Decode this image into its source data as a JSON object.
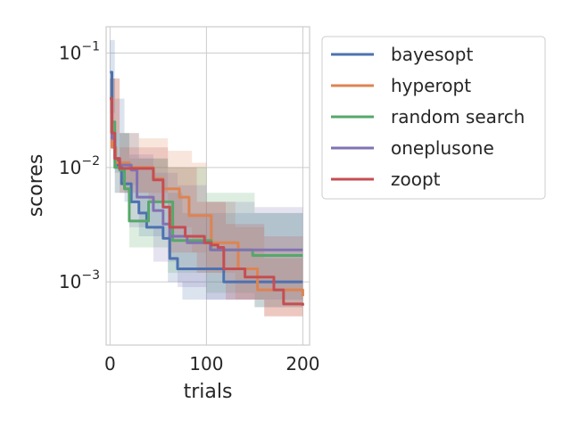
{
  "chart_data": {
    "type": "line",
    "title": "",
    "xlabel": "trials",
    "ylabel": "scores",
    "xlim": [
      -4,
      207
    ],
    "ylim": [
      0.00028,
      0.17
    ],
    "y_scale": "log",
    "xticks": [
      0,
      100,
      200
    ],
    "xtick_labels": [
      "0",
      "100",
      "200"
    ],
    "yticks": [
      0.1,
      0.01,
      0.001
    ],
    "ytick_labels": [
      {
        "base": "10",
        "exp": "−1"
      },
      {
        "base": "10",
        "exp": "−2"
      },
      {
        "base": "10",
        "exp": "−3"
      }
    ],
    "grid": true,
    "legend_position": "outside-right",
    "series": [
      {
        "name": "bayesopt",
        "color": "#4c72b0",
        "points": [
          [
            0,
            0.068
          ],
          [
            2,
            0.02
          ],
          [
            5,
            0.012
          ],
          [
            8,
            0.01
          ],
          [
            12,
            0.0072
          ],
          [
            18,
            0.0072
          ],
          [
            22,
            0.005
          ],
          [
            30,
            0.004
          ],
          [
            38,
            0.003
          ],
          [
            48,
            0.003
          ],
          [
            55,
            0.0024
          ],
          [
            62,
            0.0016
          ],
          [
            70,
            0.0013
          ],
          [
            105,
            0.0013
          ],
          [
            118,
            0.001
          ],
          [
            200,
            0.001
          ]
        ],
        "band": [
          [
            0,
            0.13,
            0.03
          ],
          [
            5,
            0.04,
            0.009
          ],
          [
            15,
            0.02,
            0.005
          ],
          [
            30,
            0.012,
            0.0025
          ],
          [
            60,
            0.006,
            0.001
          ],
          [
            75,
            0.004,
            0.0007
          ],
          [
            200,
            0.0035,
            0.0005
          ]
        ]
      },
      {
        "name": "hyperopt",
        "color": "#dd8452",
        "points": [
          [
            0,
            0.04
          ],
          [
            2,
            0.015
          ],
          [
            6,
            0.011
          ],
          [
            12,
            0.011
          ],
          [
            20,
            0.01
          ],
          [
            38,
            0.01
          ],
          [
            45,
            0.008
          ],
          [
            55,
            0.0065
          ],
          [
            65,
            0.0065
          ],
          [
            72,
            0.0055
          ],
          [
            82,
            0.0038
          ],
          [
            98,
            0.0038
          ],
          [
            105,
            0.0022
          ],
          [
            120,
            0.0022
          ],
          [
            133,
            0.0013
          ],
          [
            148,
            0.0013
          ],
          [
            153,
            0.00085
          ],
          [
            195,
            0.00085
          ],
          [
            200,
            0.00075
          ]
        ],
        "band": [
          [
            0,
            0.06,
            0.02
          ],
          [
            10,
            0.02,
            0.007
          ],
          [
            30,
            0.018,
            0.006
          ],
          [
            60,
            0.014,
            0.003
          ],
          [
            85,
            0.011,
            0.0018
          ],
          [
            100,
            0.005,
            0.0012
          ],
          [
            130,
            0.003,
            0.0007
          ],
          [
            160,
            0.0016,
            0.0005
          ],
          [
            200,
            0.0014,
            0.0004
          ]
        ]
      },
      {
        "name": "random search",
        "color": "#55a868",
        "points": [
          [
            0,
            0.04
          ],
          [
            2,
            0.025
          ],
          [
            5,
            0.01
          ],
          [
            10,
            0.0095
          ],
          [
            15,
            0.0065
          ],
          [
            20,
            0.0034
          ],
          [
            35,
            0.0034
          ],
          [
            40,
            0.005
          ],
          [
            62,
            0.005
          ],
          [
            65,
            0.0023
          ],
          [
            100,
            0.0023
          ],
          [
            105,
            0.0019
          ],
          [
            140,
            0.0019
          ],
          [
            148,
            0.0017
          ],
          [
            200,
            0.0017
          ]
        ],
        "band": [
          [
            0,
            0.06,
            0.02
          ],
          [
            5,
            0.02,
            0.006
          ],
          [
            20,
            0.012,
            0.002
          ],
          [
            60,
            0.01,
            0.0012
          ],
          [
            100,
            0.006,
            0.0008
          ],
          [
            150,
            0.004,
            0.0006
          ],
          [
            200,
            0.004,
            0.0006
          ]
        ]
      },
      {
        "name": "oneplusone",
        "color": "#8172b3",
        "points": [
          [
            0,
            0.04
          ],
          [
            2,
            0.018
          ],
          [
            5,
            0.012
          ],
          [
            10,
            0.0105
          ],
          [
            22,
            0.0095
          ],
          [
            28,
            0.0055
          ],
          [
            38,
            0.0055
          ],
          [
            45,
            0.0042
          ],
          [
            55,
            0.0032
          ],
          [
            62,
            0.0025
          ],
          [
            75,
            0.0025
          ],
          [
            80,
            0.0022
          ],
          [
            100,
            0.0022
          ],
          [
            104,
            0.0019
          ],
          [
            200,
            0.0019
          ]
        ],
        "band": [
          [
            0,
            0.06,
            0.02
          ],
          [
            5,
            0.02,
            0.006
          ],
          [
            20,
            0.013,
            0.003
          ],
          [
            45,
            0.009,
            0.0015
          ],
          [
            70,
            0.007,
            0.0009
          ],
          [
            100,
            0.005,
            0.0007
          ],
          [
            150,
            0.0045,
            0.0006
          ],
          [
            200,
            0.0045,
            0.0006
          ]
        ]
      },
      {
        "name": "zoopt",
        "color": "#c44e52",
        "points": [
          [
            0,
            0.04
          ],
          [
            2,
            0.02
          ],
          [
            5,
            0.012
          ],
          [
            10,
            0.0098
          ],
          [
            40,
            0.0098
          ],
          [
            45,
            0.0078
          ],
          [
            55,
            0.0045
          ],
          [
            62,
            0.003
          ],
          [
            78,
            0.0025
          ],
          [
            98,
            0.0022
          ],
          [
            105,
            0.0021
          ],
          [
            112,
            0.002
          ],
          [
            118,
            0.0013
          ],
          [
            135,
            0.0013
          ],
          [
            140,
            0.0011
          ],
          [
            165,
            0.0011
          ],
          [
            170,
            0.00085
          ],
          [
            180,
            0.00064
          ],
          [
            200,
            0.00062
          ]
        ],
        "band": [
          [
            0,
            0.06,
            0.02
          ],
          [
            10,
            0.015,
            0.006
          ],
          [
            40,
            0.015,
            0.005
          ],
          [
            60,
            0.01,
            0.0018
          ],
          [
            90,
            0.005,
            0.0012
          ],
          [
            120,
            0.0032,
            0.0007
          ],
          [
            160,
            0.0025,
            0.0005
          ],
          [
            200,
            0.0022,
            0.00037
          ]
        ]
      }
    ]
  }
}
